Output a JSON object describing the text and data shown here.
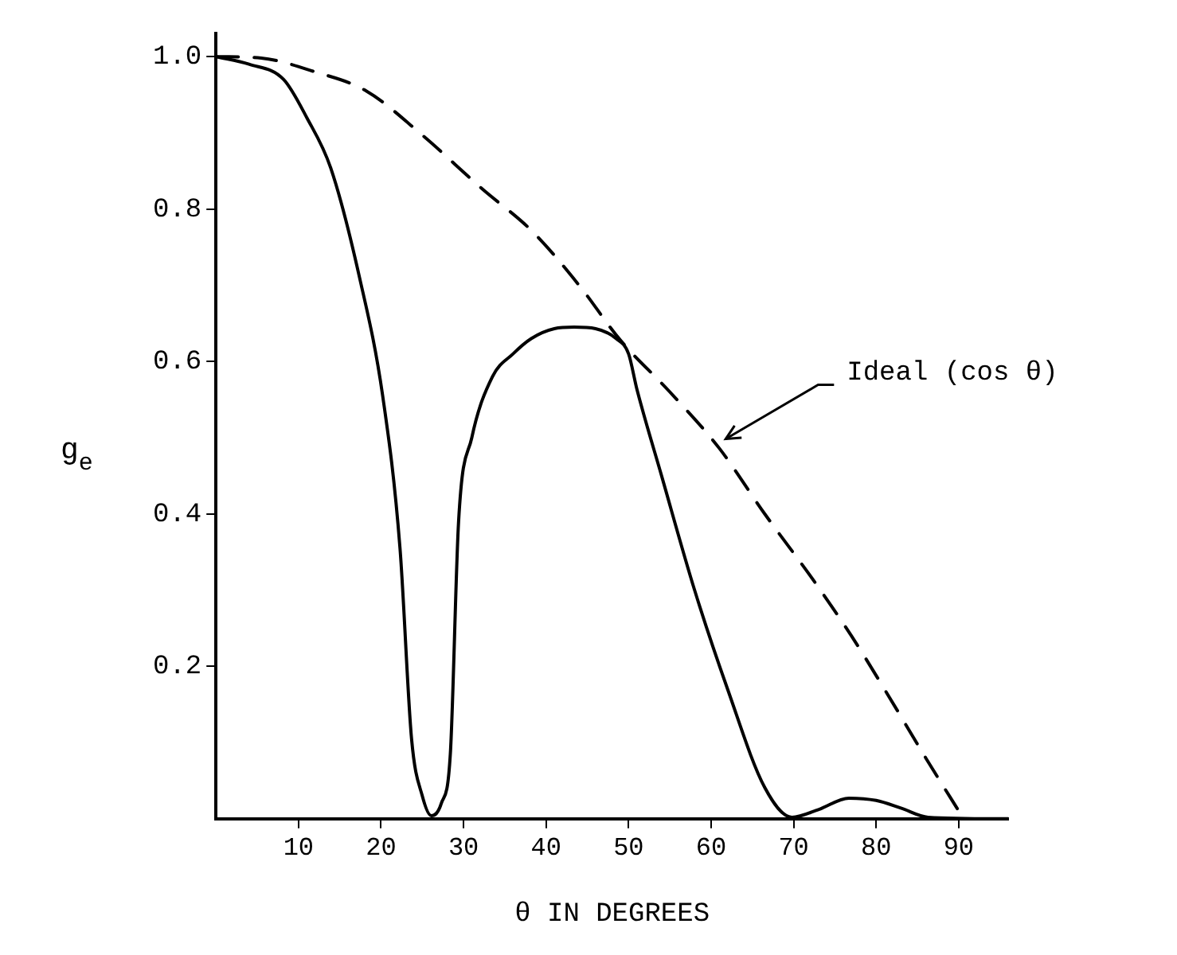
{
  "chart_data": {
    "type": "line",
    "xlabel": "θ IN DEGREES",
    "ylabel": "g$_{e}$",
    "xlim": [
      0,
      96
    ],
    "xticks": [
      10,
      20,
      30,
      40,
      50,
      60,
      70,
      80,
      90
    ],
    "ylim": [
      0,
      1.03
    ],
    "yticks": [
      0.2,
      0.4,
      0.6,
      0.8,
      {
        "value": 1,
        "label": "1.0"
      }
    ],
    "grid": false,
    "legend": false,
    "marker": "none",
    "annotations": [
      {
        "text": "Ideal (cos θ)",
        "x": 61,
        "y": 0.49
      }
    ],
    "series": [
      {
        "color": "#000000",
        "line_style": "solid",
        "x": [
          0,
          4,
          8.2,
          11,
          13.9,
          17.4,
          20.2,
          22.3,
          23.7,
          25,
          26.1,
          27.3,
          28.4,
          29.4,
          31,
          33.5,
          36,
          38.2,
          41,
          43.4,
          46,
          48.5,
          50,
          51,
          54,
          58,
          62,
          66.5,
          69.8,
          73,
          76.7,
          80,
          83,
          86.3,
          96
        ],
        "values": [
          1.0,
          0.99,
          0.97,
          0.92,
          0.854,
          0.71,
          0.555,
          0.355,
          0.105,
          0.03,
          0.004,
          0.02,
          0.085,
          0.39,
          0.5,
          0.58,
          0.61,
          0.63,
          0.643,
          0.645,
          0.643,
          0.63,
          0.61,
          0.564,
          0.45,
          0.3,
          0.17,
          0.041,
          0.002,
          0.012,
          0.027,
          0.024,
          0.014,
          0.002,
          0
        ]
      },
      {
        "color": "#000000",
        "line_style": "dashed",
        "x": [
          0,
          5.5,
          12,
          18.2,
          25,
          32.2,
          38.4,
          44,
          49,
          55,
          61,
          66.5,
          72.2,
          77,
          81.4,
          86,
          90.6
        ],
        "values": [
          1.0,
          0.998,
          0.98,
          0.955,
          0.897,
          0.827,
          0.77,
          0.7,
          0.628,
          0.56,
          0.486,
          0.4,
          0.316,
          0.24,
          0.163,
          0.08,
          0
        ]
      }
    ]
  }
}
